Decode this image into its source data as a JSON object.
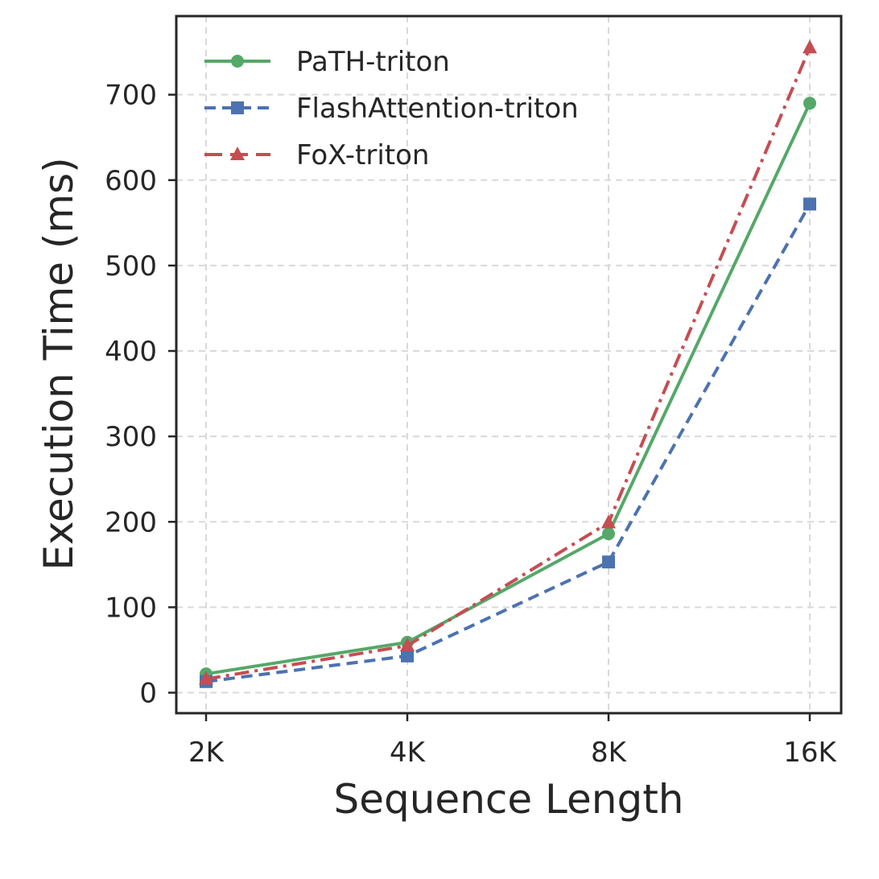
{
  "chart_data": {
    "type": "line",
    "title": "",
    "xlabel": "Sequence Length",
    "ylabel": "Execution Time (ms)",
    "categories": [
      "2K",
      "4K",
      "8K",
      "16K"
    ],
    "yticks": [
      0,
      100,
      200,
      300,
      400,
      500,
      600,
      700
    ],
    "ylim": [
      -24,
      792
    ],
    "grid": true,
    "legend_position": "top-left",
    "series": [
      {
        "name": "PaTH-triton",
        "color": "#55a868",
        "linestyle": "solid",
        "marker": "circle",
        "values": [
          22,
          59,
          186,
          690
        ]
      },
      {
        "name": "FlashAttention-triton",
        "color": "#4c72b0",
        "linestyle": "dashed",
        "marker": "square",
        "values": [
          13,
          43,
          153,
          572
        ]
      },
      {
        "name": "FoX-triton",
        "color": "#c44e52",
        "linestyle": "dashdot",
        "marker": "triangle",
        "values": [
          16,
          55,
          199,
          755
        ]
      }
    ]
  }
}
